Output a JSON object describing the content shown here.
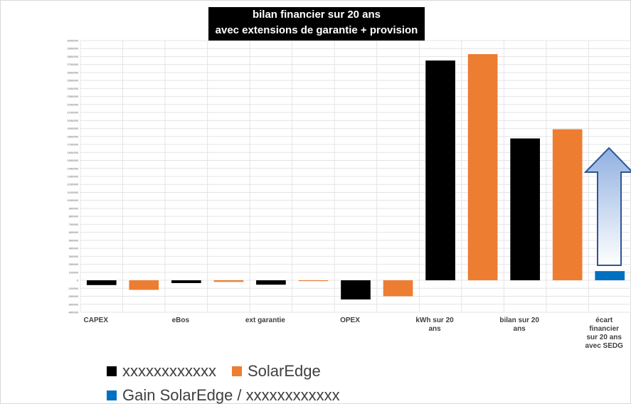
{
  "chart_data": {
    "type": "bar",
    "title": "bilan financier sur 20 ans\navec extensions de garantie + provision",
    "categories": [
      "CAPEX",
      null,
      "eBos",
      null,
      "ext garantie",
      null,
      "OPEX",
      null,
      "kWh sur 20 ans",
      null,
      "bilan sur 20 ans",
      null,
      "écart financier sur 20 ans avec SEDG"
    ],
    "series": [
      {
        "name": "xxxxxxxxxxxx",
        "color": "#000000",
        "values": [
          -60000,
          null,
          -35000,
          null,
          -55000,
          null,
          -240000,
          null,
          2750000,
          null,
          1775000,
          null,
          null
        ]
      },
      {
        "name": "SolarEdge",
        "color": "#ed7d31",
        "values": [
          null,
          -120000,
          null,
          -20000,
          null,
          -10000,
          null,
          -200000,
          null,
          2830000,
          null,
          1890000,
          null
        ]
      },
      {
        "name": "Gain SolarEdge / xxxxxxxxxxxx",
        "color": "#0070c0",
        "values": [
          null,
          null,
          null,
          null,
          null,
          null,
          null,
          null,
          null,
          null,
          null,
          null,
          115000
        ]
      }
    ],
    "ylim": [
      -400000,
      3000000
    ],
    "yticks": [
      -400000,
      -300000,
      -200000,
      -100000,
      0,
      100000,
      200000,
      300000,
      400000,
      500000,
      600000,
      700000,
      800000,
      900000,
      1000000,
      1100000,
      1200000,
      1300000,
      1400000,
      1500000,
      1600000,
      1700000,
      1800000,
      1900000,
      2000000,
      2100000,
      2200000,
      2300000,
      2400000,
      2500000,
      2600000,
      2700000,
      2800000,
      2900000,
      3000000
    ],
    "grid": true,
    "legend": "bottom"
  }
}
